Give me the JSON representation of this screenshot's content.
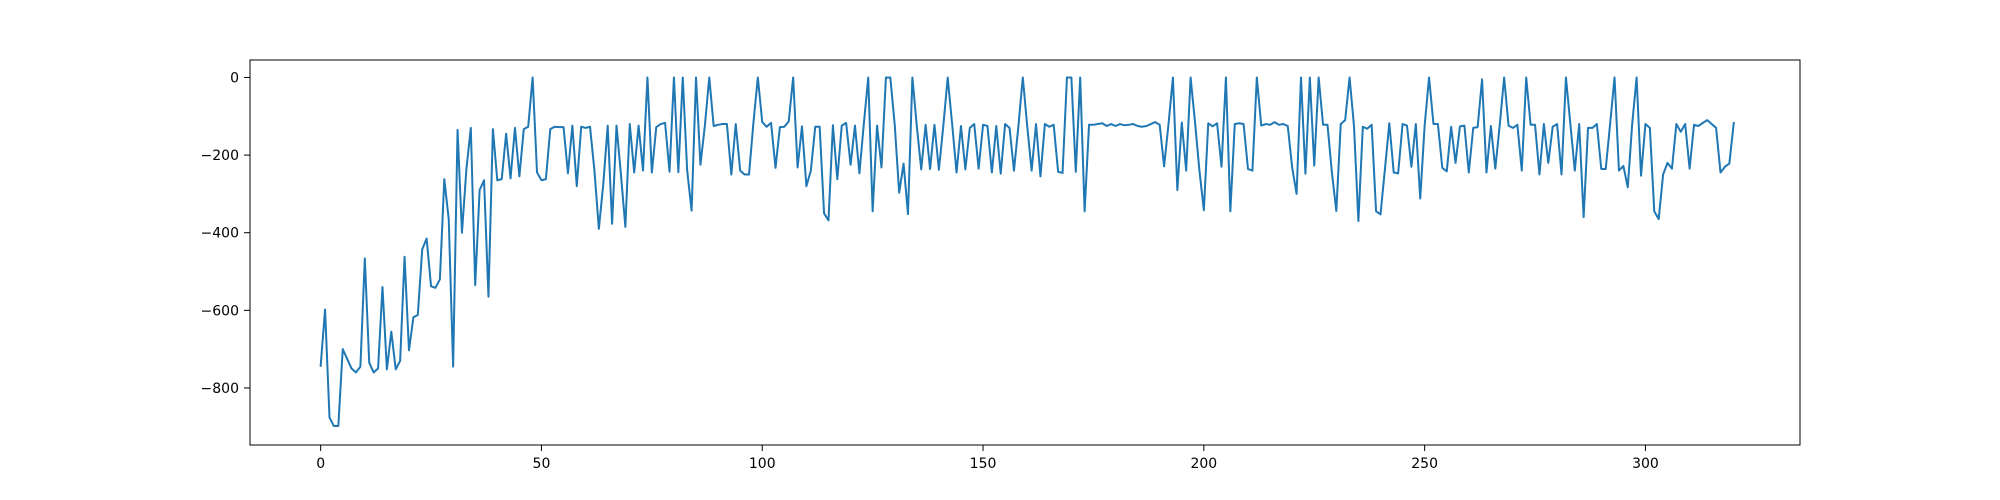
{
  "chart_data": {
    "type": "line",
    "title": "",
    "xlabel": "",
    "ylabel": "",
    "xlim": [
      -16,
      335
    ],
    "ylim": [
      -947,
      45
    ],
    "grid": false,
    "legend": "none",
    "x_ticks": [
      0,
      50,
      100,
      150,
      200,
      250,
      300
    ],
    "x_tick_labels": [
      "0",
      "50",
      "100",
      "150",
      "200",
      "250",
      "300"
    ],
    "y_ticks": [
      0,
      -200,
      -400,
      -600,
      -800
    ],
    "y_tick_labels": [
      "0",
      "−200",
      "−400",
      "−600",
      "−800"
    ],
    "series": [
      {
        "color": "#1f77b4",
        "x_start": 0,
        "values": [
          -743,
          -598,
          -876,
          -898,
          -898,
          -700,
          -725,
          -750,
          -760,
          -745,
          -466,
          -735,
          -760,
          -750,
          -540,
          -752,
          -655,
          -752,
          -730,
          -462,
          -703,
          -618,
          -612,
          -443,
          -415,
          -538,
          -542,
          -520,
          -262,
          -365,
          -745,
          -135,
          -400,
          -237,
          -130,
          -535,
          -290,
          -265,
          -565,
          -133,
          -265,
          -262,
          -145,
          -260,
          -130,
          -255,
          -133,
          -127,
          0,
          -245,
          -265,
          -262,
          -133,
          -127,
          -128,
          -128,
          -247,
          -124,
          -280,
          -127,
          -130,
          -127,
          -240,
          -390,
          -275,
          -124,
          -377,
          -124,
          -250,
          -385,
          -120,
          -245,
          -124,
          -240,
          0,
          -245,
          -128,
          -120,
          -117,
          -243,
          0,
          -244,
          0,
          -240,
          -343,
          0,
          -225,
          -125,
          0,
          -125,
          -122,
          -120,
          -120,
          -250,
          -120,
          -240,
          -250,
          -250,
          -117,
          0,
          -115,
          -127,
          -117,
          -233,
          -128,
          -127,
          -113,
          0,
          -232,
          -126,
          -280,
          -240,
          -127,
          -127,
          -350,
          -368,
          -123,
          -262,
          -124,
          -117,
          -225,
          -124,
          -247,
          -120,
          0,
          -345,
          -124,
          -232,
          0,
          0,
          -122,
          -297,
          -222,
          -352,
          0,
          -125,
          -237,
          -122,
          -236,
          -122,
          -238,
          -125,
          0,
          -120,
          -245,
          -125,
          -237,
          -130,
          -120,
          -235,
          -122,
          -125,
          -245,
          -125,
          -248,
          -120,
          -130,
          -240,
          -126,
          0,
          -125,
          -240,
          -120,
          -255,
          -120,
          -127,
          -122,
          -243,
          -246,
          0,
          0,
          -243,
          0,
          -345,
          -122,
          -122,
          -120,
          -118,
          -125,
          -120,
          -125,
          -120,
          -123,
          -122,
          -120,
          -125,
          -127,
          -125,
          -120,
          -115,
          -122,
          -229,
          -120,
          0,
          -290,
          -116,
          -240,
          0,
          -115,
          -240,
          -342,
          -118,
          -126,
          -118,
          -230,
          0,
          -345,
          -120,
          -118,
          -120,
          -236,
          -240,
          0,
          -124,
          -120,
          -122,
          -115,
          -122,
          -120,
          -125,
          -232,
          -300,
          0,
          -248,
          0,
          -227,
          0,
          -122,
          -122,
          -245,
          -344,
          -120,
          -110,
          0,
          -125,
          -370,
          -127,
          -132,
          -122,
          -345,
          -353,
          -237,
          -118,
          -245,
          -247,
          -120,
          -124,
          -230,
          -120,
          -312,
          -124,
          0,
          -120,
          -120,
          -233,
          -242,
          -127,
          -220,
          -126,
          -124,
          -245,
          -130,
          -128,
          -5,
          -245,
          -125,
          -235,
          -123,
          0,
          -124,
          -130,
          -122,
          -240,
          0,
          -122,
          -122,
          -250,
          -120,
          -220,
          -127,
          -120,
          -250,
          0,
          -120,
          -240,
          -120,
          -360,
          -130,
          -130,
          -120,
          -236,
          -236,
          -120,
          0,
          -240,
          -228,
          -283,
          -120,
          0,
          -253,
          -120,
          -130,
          -345,
          -365,
          -250,
          -220,
          -235,
          -120,
          -140,
          -120,
          -235,
          -122,
          -125,
          -117,
          -110,
          -120,
          -130,
          -245,
          -230,
          -222,
          -117
        ]
      }
    ]
  }
}
